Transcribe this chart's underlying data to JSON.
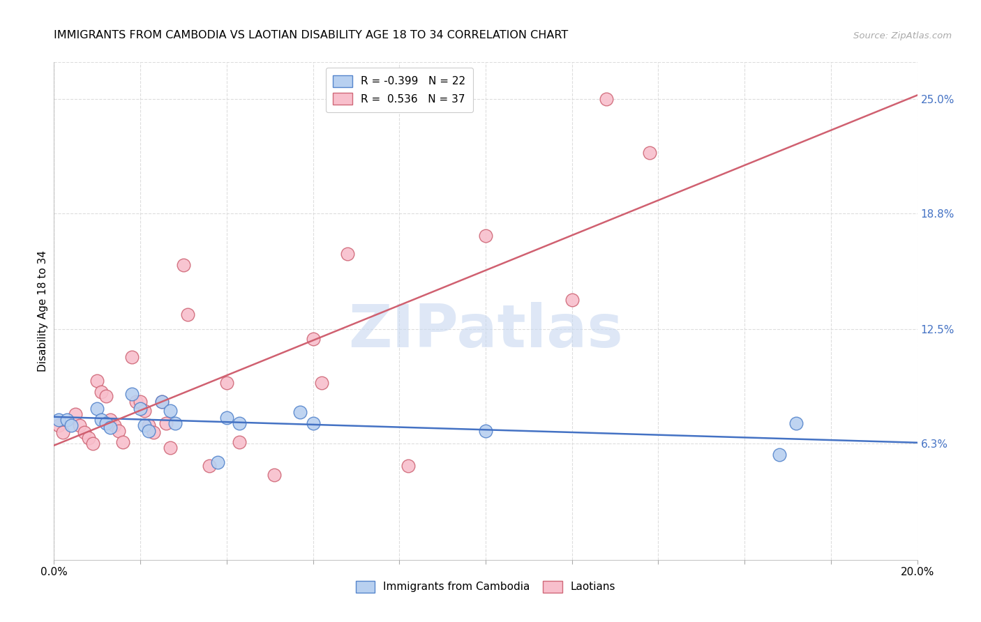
{
  "title": "IMMIGRANTS FROM CAMBODIA VS LAOTIAN DISABILITY AGE 18 TO 34 CORRELATION CHART",
  "source": "Source: ZipAtlas.com",
  "ylabel": "Disability Age 18 to 34",
  "xlim": [
    0.0,
    0.2
  ],
  "ylim": [
    0.0,
    0.27
  ],
  "ytick_labels": [
    "6.3%",
    "12.5%",
    "18.8%",
    "25.0%"
  ],
  "ytick_values": [
    0.063,
    0.125,
    0.188,
    0.25
  ],
  "xtick_values": [
    0.0,
    0.02,
    0.04,
    0.06,
    0.08,
    0.1,
    0.12,
    0.14,
    0.16,
    0.18,
    0.2
  ],
  "watermark_text": "ZIPatlas",
  "blue_face_color": "#b8d0f0",
  "pink_face_color": "#f8bfcc",
  "blue_edge_color": "#5585cc",
  "pink_edge_color": "#d06878",
  "blue_line_color": "#4472c4",
  "pink_line_color": "#d06070",
  "blue_scatter": [
    [
      0.001,
      0.076
    ],
    [
      0.003,
      0.076
    ],
    [
      0.004,
      0.073
    ],
    [
      0.01,
      0.082
    ],
    [
      0.011,
      0.076
    ],
    [
      0.012,
      0.074
    ],
    [
      0.013,
      0.072
    ],
    [
      0.018,
      0.09
    ],
    [
      0.02,
      0.082
    ],
    [
      0.021,
      0.073
    ],
    [
      0.022,
      0.07
    ],
    [
      0.025,
      0.086
    ],
    [
      0.027,
      0.081
    ],
    [
      0.028,
      0.074
    ],
    [
      0.038,
      0.053
    ],
    [
      0.04,
      0.077
    ],
    [
      0.043,
      0.074
    ],
    [
      0.057,
      0.08
    ],
    [
      0.06,
      0.074
    ],
    [
      0.1,
      0.07
    ],
    [
      0.168,
      0.057
    ],
    [
      0.172,
      0.074
    ]
  ],
  "pink_scatter": [
    [
      0.001,
      0.073
    ],
    [
      0.002,
      0.069
    ],
    [
      0.005,
      0.079
    ],
    [
      0.006,
      0.073
    ],
    [
      0.007,
      0.069
    ],
    [
      0.008,
      0.066
    ],
    [
      0.009,
      0.063
    ],
    [
      0.01,
      0.097
    ],
    [
      0.011,
      0.091
    ],
    [
      0.012,
      0.089
    ],
    [
      0.013,
      0.076
    ],
    [
      0.014,
      0.073
    ],
    [
      0.015,
      0.07
    ],
    [
      0.016,
      0.064
    ],
    [
      0.018,
      0.11
    ],
    [
      0.019,
      0.086
    ],
    [
      0.02,
      0.086
    ],
    [
      0.021,
      0.081
    ],
    [
      0.022,
      0.073
    ],
    [
      0.023,
      0.069
    ],
    [
      0.025,
      0.086
    ],
    [
      0.026,
      0.074
    ],
    [
      0.027,
      0.061
    ],
    [
      0.03,
      0.16
    ],
    [
      0.031,
      0.133
    ],
    [
      0.036,
      0.051
    ],
    [
      0.04,
      0.096
    ],
    [
      0.043,
      0.064
    ],
    [
      0.051,
      0.046
    ],
    [
      0.06,
      0.12
    ],
    [
      0.062,
      0.096
    ],
    [
      0.068,
      0.166
    ],
    [
      0.082,
      0.051
    ],
    [
      0.1,
      0.176
    ],
    [
      0.12,
      0.141
    ],
    [
      0.128,
      0.25
    ],
    [
      0.138,
      0.221
    ]
  ],
  "blue_legend_label": "R = -0.399   N = 22",
  "pink_legend_label": "R =  0.536   N = 37",
  "legend_blue_label": "Immigrants from Cambodia",
  "legend_pink_label": "Laotians"
}
